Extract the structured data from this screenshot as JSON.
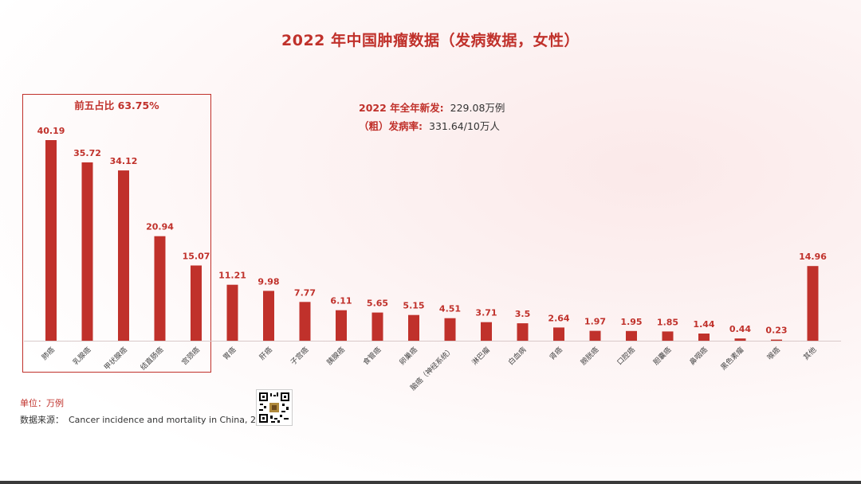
{
  "title": "2022 年中国肿瘤数据（发病数据，女性）",
  "summary": {
    "new_cases_label": "2022 年全年新发:",
    "new_cases_value": "229.08万例",
    "rate_label": "（粗）发病率:",
    "rate_value": "331.64/10万人"
  },
  "top5_label": "前五占比 63.75%",
  "footer": {
    "unit": "单位：万例",
    "source_label": "数据来源：",
    "source_text": "Cancer incidence and mortality in China, 2022"
  },
  "colors": {
    "bar": "#c0312b",
    "accent": "#c0312b"
  },
  "chart_data": {
    "type": "bar",
    "title": "2022 年中国肿瘤数据（发病数据，女性）",
    "xlabel": "",
    "ylabel": "",
    "unit": "万例",
    "ylim": [
      0,
      45
    ],
    "grid": false,
    "categories": [
      "肺癌",
      "乳腺癌",
      "甲状腺癌",
      "结直肠癌",
      "宫颈癌",
      "胃癌",
      "肝癌",
      "子宫癌",
      "胰腺癌",
      "食管癌",
      "卵巢癌",
      "脑癌（神经系统）",
      "淋巴瘤",
      "白血病",
      "肾癌",
      "膀胱癌",
      "口腔癌",
      "胆囊癌",
      "鼻咽癌",
      "黑色素瘤",
      "喉癌",
      "其他"
    ],
    "values": [
      40.19,
      35.72,
      34.12,
      20.94,
      15.07,
      11.21,
      9.98,
      7.77,
      6.11,
      5.65,
      5.15,
      4.51,
      3.71,
      3.5,
      2.64,
      1.97,
      1.95,
      1.85,
      1.44,
      0.44,
      0.23,
      14.96
    ],
    "value_labels": [
      "40.19",
      "35.72",
      "34.12",
      "20.94",
      "15.07",
      "11.21",
      "9.98",
      "7.77",
      "6.11",
      "5.65",
      "5.15",
      "4.51",
      "3.71",
      "3.5",
      "2.64",
      "1.97",
      "1.95",
      "1.85",
      "1.44",
      "0.44",
      "0.23",
      "14.96"
    ]
  }
}
